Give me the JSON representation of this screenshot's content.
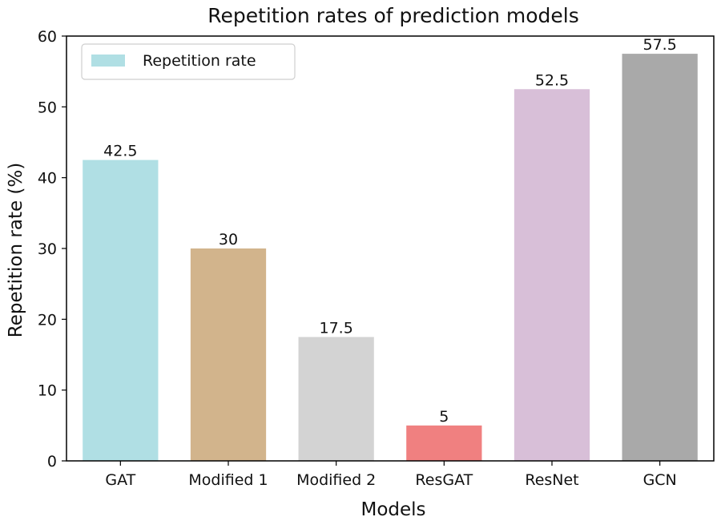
{
  "chart_data": {
    "type": "bar",
    "title": "Repetition rates of prediction models",
    "xlabel": "Models",
    "ylabel": "Repetition rate (%)",
    "categories": [
      "GAT",
      "Modified 1",
      "Modified 2",
      "ResGAT",
      "ResNet",
      "GCN"
    ],
    "series": [
      {
        "name": "Repetition rate",
        "values": [
          42.5,
          30,
          17.5,
          5,
          52.5,
          57.5
        ]
      }
    ],
    "data_labels": [
      "42.5",
      "30",
      "17.5",
      "5",
      "52.5",
      "57.5"
    ],
    "bar_colors": [
      "#b0dfe4",
      "#d2b48c",
      "#d3d3d3",
      "#f08080",
      "#d8bfd8",
      "#a9a9a9"
    ],
    "ylim": [
      0,
      60
    ],
    "yticks": [
      0,
      10,
      20,
      30,
      40,
      50,
      60
    ],
    "ytick_labels": [
      "0",
      "10",
      "20",
      "30",
      "40",
      "50",
      "60"
    ],
    "grid": false,
    "legend_position": "top-left"
  }
}
